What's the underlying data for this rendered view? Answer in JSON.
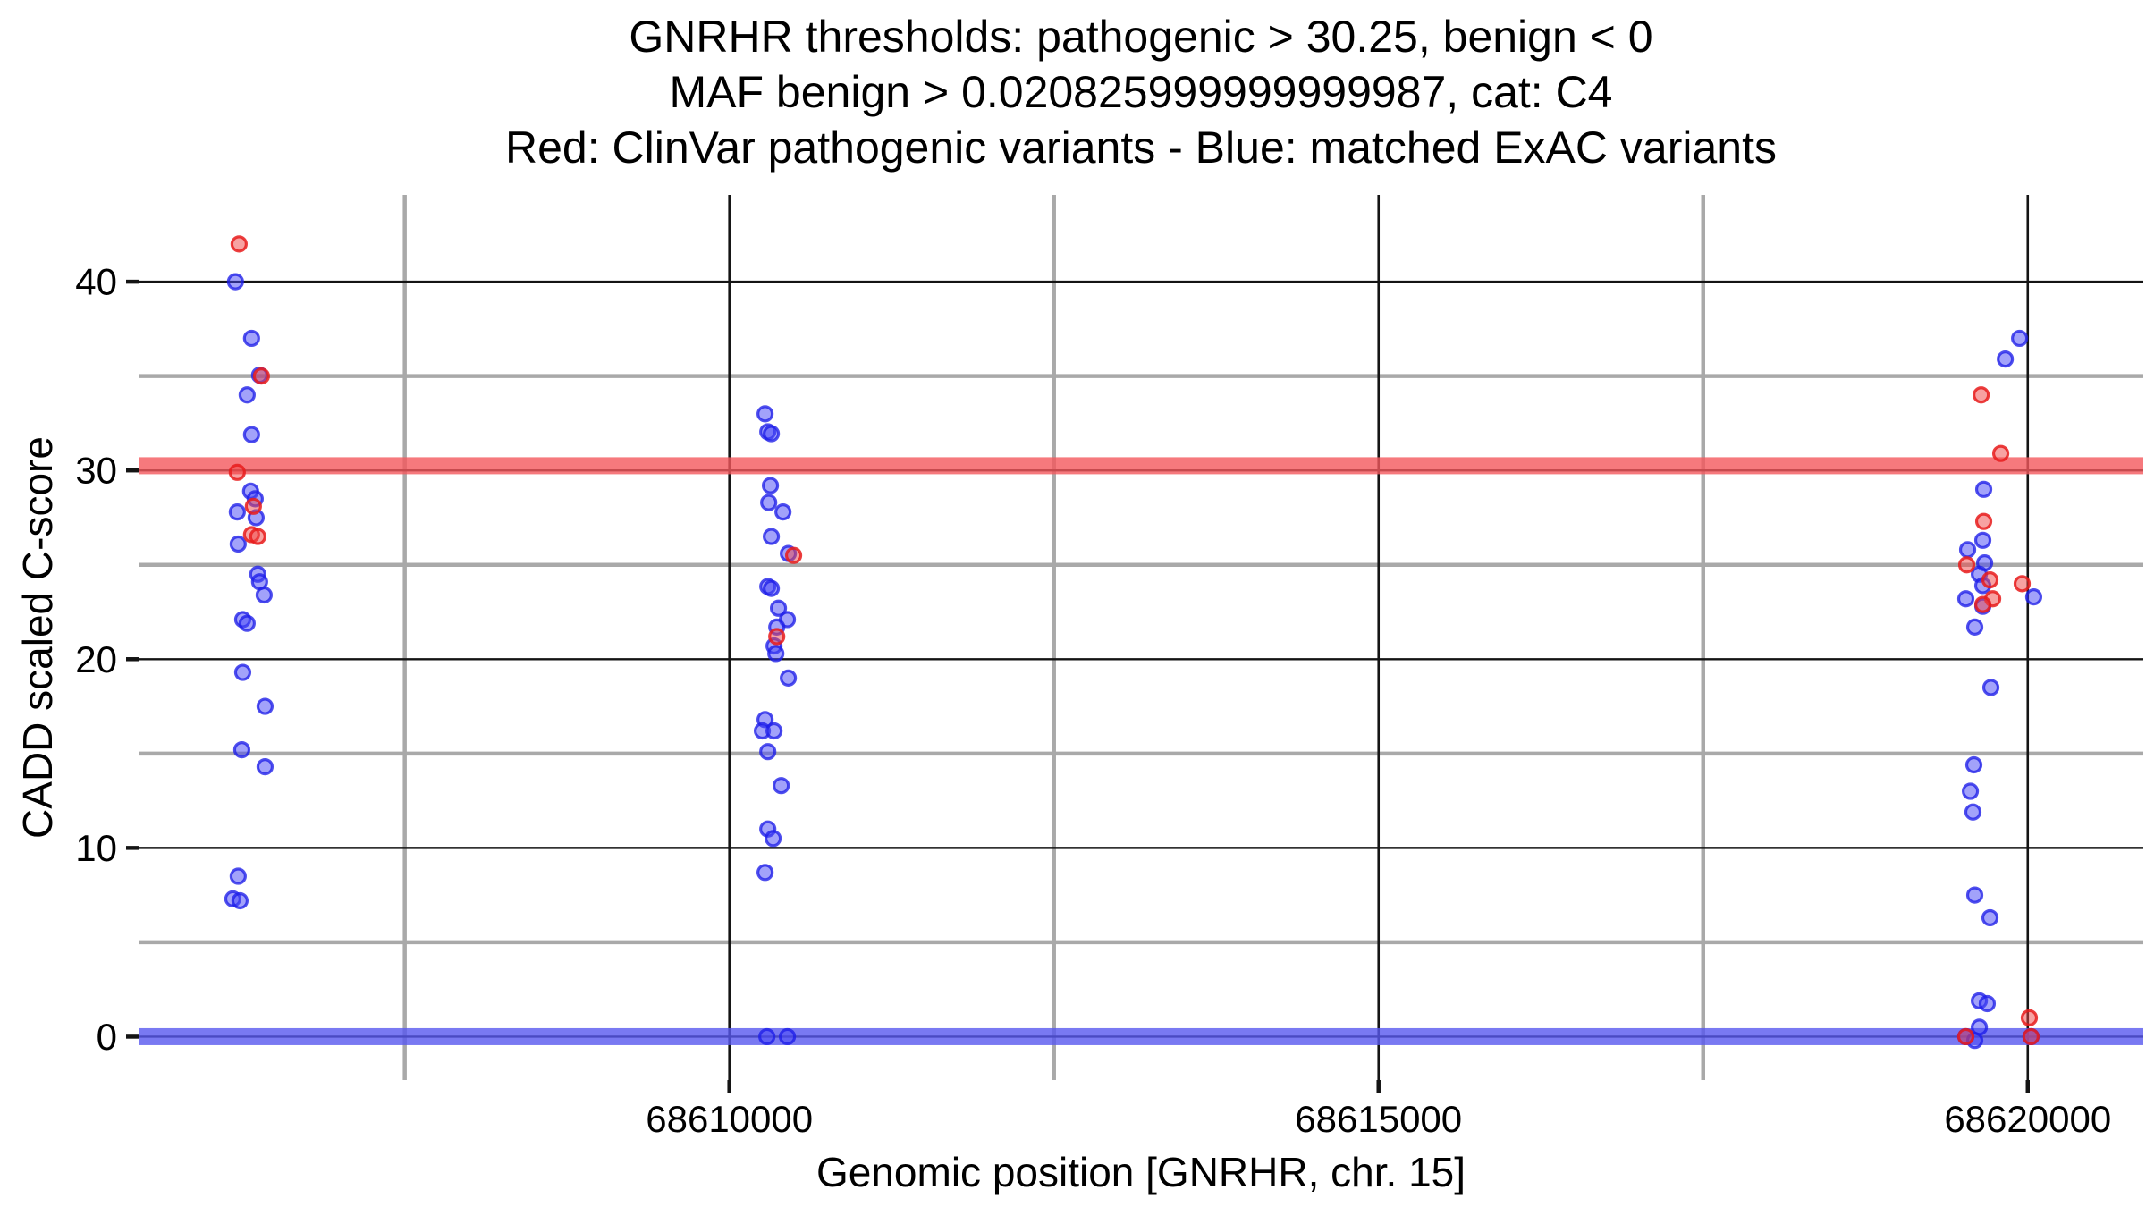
{
  "title": {
    "line1": "GNRHR thresholds: pathogenic > 30.25, benign < 0",
    "line2": "MAF benign > 0.020825999999999987, cat: C4",
    "line3": "Red: ClinVar pathogenic variants - Blue: matched ExAC variants"
  },
  "chart_data": {
    "type": "scatter",
    "title_lines": [
      "GNRHR thresholds: pathogenic > 30.25, benign < 0",
      "MAF benign > 0.020825999999999987, cat: C4",
      "Red: ClinVar pathogenic variants - Blue: matched ExAC variants"
    ],
    "xlabel": "Genomic position [GNRHR, chr. 15]",
    "ylabel": "CADD scaled C-score",
    "gene": "GNRHR",
    "chromosome": "15",
    "category": "C4",
    "thresholds": {
      "pathogenic": 30.25,
      "benign": 0,
      "maf_benign": "0.020825999999999987"
    },
    "xlim": [
      68605450,
      68620890
    ],
    "ylim": [
      -2.3,
      44.6
    ],
    "x_ticks": [
      68610000,
      68615000,
      68620000
    ],
    "x_minor_ticks": [
      68607500,
      68612500,
      68617500
    ],
    "y_ticks": [
      0,
      10,
      20,
      30,
      40
    ],
    "y_minor_ticks": [
      5,
      15,
      25,
      35
    ],
    "grid": "on",
    "legend_position": "none",
    "bands": [
      {
        "name": "pathogenic-threshold-band",
        "y": 30.25,
        "half_height": 0.45,
        "color": "#f4575c"
      },
      {
        "name": "benign-threshold-band",
        "y": 0.0,
        "half_height": 0.45,
        "color": "#5757ef"
      }
    ],
    "colors": {
      "red_stroke": "rgba(232,28,28,0.85)",
      "red_fill": "rgba(240,70,70,0.5)",
      "blue_stroke": "rgba(30,30,232,0.78)",
      "blue_fill": "rgba(70,70,245,0.5)",
      "band_opacity": 0.8,
      "grid_major": "#141414",
      "grid_minor": "#a9a9a9",
      "tick": "#141414",
      "text": "#000000"
    },
    "series": [
      {
        "name": "ClinVar pathogenic variants",
        "color_key": "red",
        "points": [
          [
            68606224,
            42.0
          ],
          [
            68606396,
            35.0
          ],
          [
            68606210,
            29.9
          ],
          [
            68606334,
            28.1
          ],
          [
            68606320,
            26.6
          ],
          [
            68606368,
            26.5
          ],
          [
            68610495,
            25.5
          ],
          [
            68610365,
            21.2
          ],
          [
            68619641,
            34.0
          ],
          [
            68619792,
            30.9
          ],
          [
            68619661,
            27.3
          ],
          [
            68619530,
            25.0
          ],
          [
            68619709,
            24.2
          ],
          [
            68619957,
            24.0
          ],
          [
            68619730,
            23.2
          ],
          [
            68619654,
            22.9
          ],
          [
            68620012,
            1.0
          ],
          [
            68619523,
            0.0
          ],
          [
            68620025,
            0.0
          ]
        ]
      },
      {
        "name": "matched ExAC variants",
        "color_key": "blue",
        "points": [
          [
            68606196,
            40.0
          ],
          [
            68606320,
            37.0
          ],
          [
            68606382,
            35.05
          ],
          [
            68606286,
            34.0
          ],
          [
            68606320,
            31.9
          ],
          [
            68606313,
            28.9
          ],
          [
            68606348,
            28.5
          ],
          [
            68606210,
            27.8
          ],
          [
            68606355,
            27.5
          ],
          [
            68606217,
            26.1
          ],
          [
            68606368,
            24.5
          ],
          [
            68606382,
            24.1
          ],
          [
            68606417,
            23.4
          ],
          [
            68606252,
            22.1
          ],
          [
            68606286,
            21.9
          ],
          [
            68606252,
            19.3
          ],
          [
            68606424,
            17.5
          ],
          [
            68606245,
            15.2
          ],
          [
            68606424,
            14.3
          ],
          [
            68606217,
            8.5
          ],
          [
            68606176,
            7.3
          ],
          [
            68606231,
            7.2
          ],
          [
            68610275,
            33.0
          ],
          [
            68610296,
            32.05
          ],
          [
            68610323,
            31.95
          ],
          [
            68610316,
            29.2
          ],
          [
            68610303,
            28.3
          ],
          [
            68610413,
            27.8
          ],
          [
            68610323,
            26.5
          ],
          [
            68610454,
            25.6
          ],
          [
            68610296,
            23.85
          ],
          [
            68610323,
            23.75
          ],
          [
            68610378,
            22.7
          ],
          [
            68610447,
            22.1
          ],
          [
            68610365,
            21.7
          ],
          [
            68610344,
            20.7
          ],
          [
            68610358,
            20.3
          ],
          [
            68610454,
            19.0
          ],
          [
            68610275,
            16.8
          ],
          [
            68610254,
            16.2
          ],
          [
            68610344,
            16.2
          ],
          [
            68610296,
            15.1
          ],
          [
            68610399,
            13.3
          ],
          [
            68610296,
            11.0
          ],
          [
            68610337,
            10.5
          ],
          [
            68610275,
            8.7
          ],
          [
            68610289,
            0.0
          ],
          [
            68610447,
            0.0
          ],
          [
            68619937,
            37.0
          ],
          [
            68619827,
            35.9
          ],
          [
            68619661,
            29.0
          ],
          [
            68619654,
            26.3
          ],
          [
            68619537,
            25.8
          ],
          [
            68619668,
            25.1
          ],
          [
            68619627,
            24.5
          ],
          [
            68619654,
            23.9
          ],
          [
            68620046,
            23.3
          ],
          [
            68619523,
            23.2
          ],
          [
            68619654,
            22.8
          ],
          [
            68619592,
            21.7
          ],
          [
            68619716,
            18.5
          ],
          [
            68619585,
            14.4
          ],
          [
            68619558,
            13.0
          ],
          [
            68619578,
            11.9
          ],
          [
            68619592,
            7.5
          ],
          [
            68619709,
            6.3
          ],
          [
            68619627,
            1.9
          ],
          [
            68619688,
            1.75
          ],
          [
            68619627,
            0.5
          ],
          [
            68619523,
            0.0
          ],
          [
            68619592,
            -0.2
          ],
          [
            68620025,
            0.0
          ]
        ]
      }
    ]
  }
}
